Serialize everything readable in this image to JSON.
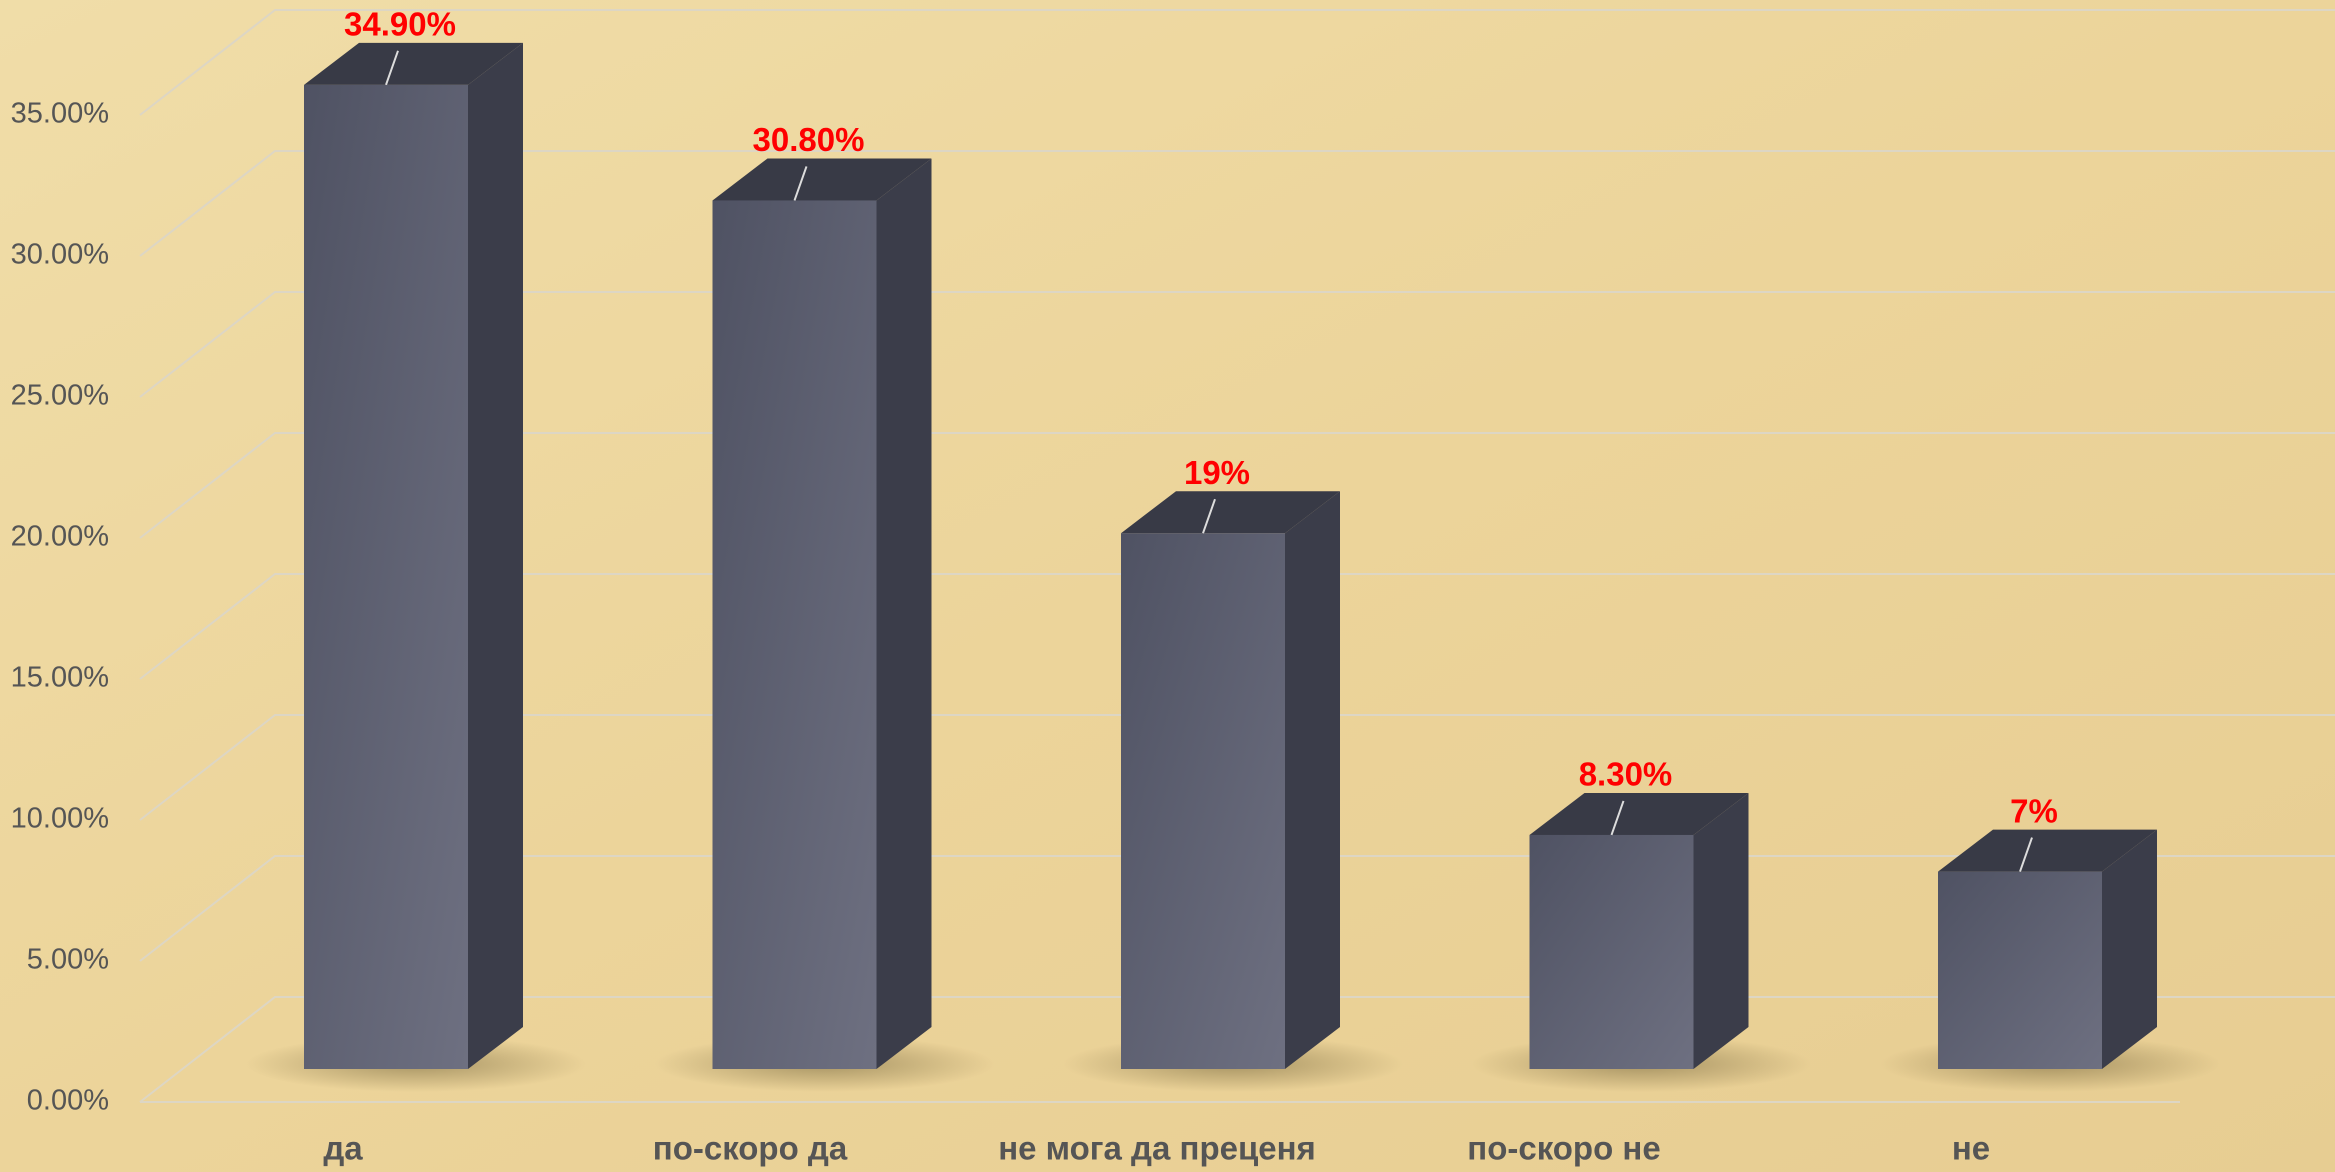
{
  "chart_data": {
    "type": "bar3d",
    "categories": [
      "да",
      "по-скоро да",
      "не мога да преценя",
      "по-скоро не",
      "не"
    ],
    "values": [
      34.9,
      30.8,
      19,
      8.3,
      7
    ],
    "value_labels": [
      "34.90%",
      "30.80%",
      "19%",
      "8.30%",
      "7%"
    ],
    "color": "#5a5d6e",
    "ylim": [
      0,
      35
    ],
    "yticks": [
      {
        "value": 0,
        "label": "0.00%"
      },
      {
        "value": 5,
        "label": "5.00%"
      },
      {
        "value": 10,
        "label": "10.00%"
      },
      {
        "value": 15,
        "label": "15.00%"
      },
      {
        "value": 20,
        "label": "20.00%"
      },
      {
        "value": 25,
        "label": "25.00%"
      },
      {
        "value": 30,
        "label": "30.00%"
      },
      {
        "value": 35,
        "label": "35.00%"
      }
    ],
    "grid": true
  }
}
